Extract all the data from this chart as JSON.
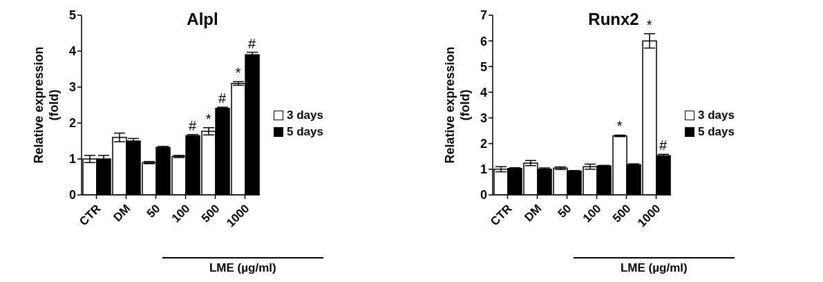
{
  "chart_data": [
    {
      "type": "bar",
      "title": "Alpl",
      "ylabel": "Relative expression (fold)",
      "categories": [
        "CTR",
        "DM",
        "50",
        "100",
        "500",
        "1000"
      ],
      "series": [
        {
          "name": "3 days",
          "color": "#ffffff",
          "values": [
            1.0,
            1.6,
            0.9,
            1.07,
            1.77,
            3.1
          ],
          "errors": [
            0.1,
            0.12,
            0.03,
            0.03,
            0.1,
            0.05
          ]
        },
        {
          "name": "5 days",
          "color": "#000000",
          "values": [
            1.0,
            1.5,
            1.32,
            1.65,
            2.41,
            3.9
          ],
          "errors": [
            0.1,
            0.07,
            0.03,
            0.03,
            0.03,
            0.07
          ]
        }
      ],
      "ylim": [
        0,
        5
      ],
      "yticks": [
        0,
        1,
        2,
        3,
        4,
        5
      ],
      "grid": false,
      "legend": "right",
      "annotations": [
        {
          "text": "#",
          "x": "100",
          "y": 1.65
        },
        {
          "text": "*",
          "x": "500",
          "y": 1.77
        },
        {
          "text": "#",
          "x": "500",
          "y": 2.41
        },
        {
          "text": "*",
          "x": "1000",
          "y": 3.1
        },
        {
          "text": "#",
          "x": "1000",
          "y": 3.9
        },
        "LME (µg/ml)"
      ]
    },
    {
      "type": "bar",
      "title": "Runx2",
      "ylabel": "Relative expression (fold)",
      "categories": [
        "CTR",
        "DM",
        "50",
        "100",
        "500",
        "1000"
      ],
      "series": [
        {
          "name": "3 days",
          "color": "#ffffff",
          "values": [
            1.0,
            1.24,
            1.04,
            1.1,
            2.3,
            6.0
          ],
          "errors": [
            0.1,
            0.1,
            0.05,
            0.1,
            0.03,
            0.28
          ]
        },
        {
          "name": "5 days",
          "color": "#000000",
          "values": [
            1.03,
            1.0,
            0.93,
            1.13,
            1.18,
            1.53
          ],
          "errors": [
            0.03,
            0.05,
            0.02,
            0.02,
            0.03,
            0.05
          ]
        }
      ],
      "ylim": [
        0,
        7
      ],
      "yticks": [
        0,
        1,
        2,
        3,
        4,
        5,
        6,
        7
      ],
      "grid": false,
      "legend": "right",
      "annotations": [
        {
          "text": "*",
          "x": "500",
          "y": 2.3
        },
        {
          "text": "*",
          "x": "1000",
          "y": 6.0
        },
        {
          "text": "#",
          "x": "1000",
          "y": 1.53
        },
        "LME (µg/ml)"
      ]
    }
  ]
}
